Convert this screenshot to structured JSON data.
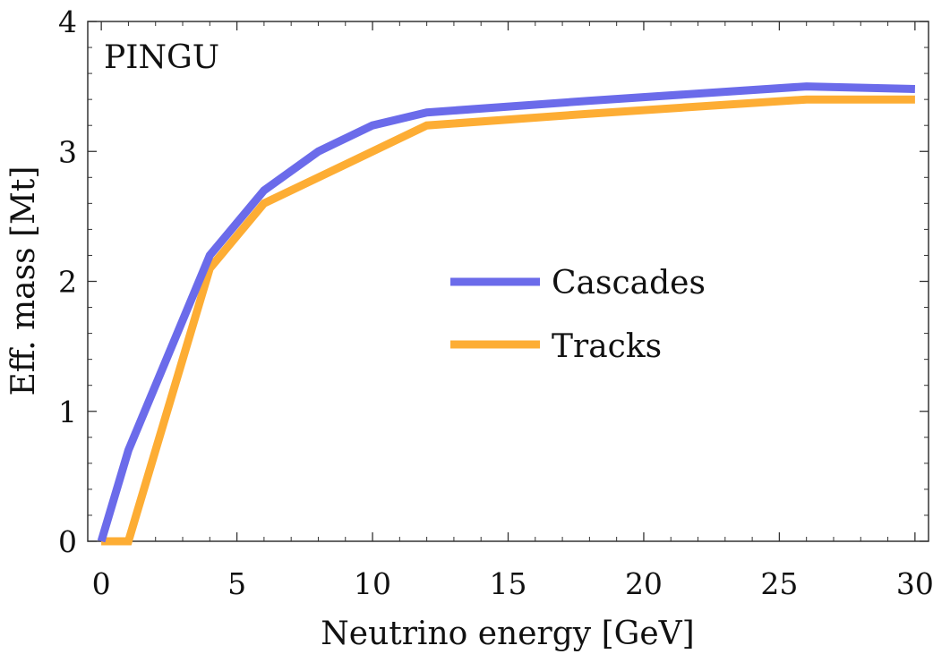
{
  "chart_data": {
    "type": "line",
    "title": "",
    "annotation": "PINGU",
    "xlabel": "Neutrino energy [GeV]",
    "ylabel": "Eff. mass [Mt]",
    "xlim": [
      -0.5,
      30.5
    ],
    "ylim": [
      0,
      4
    ],
    "xticks": [
      0,
      5,
      10,
      15,
      20,
      25,
      30
    ],
    "xtick_labels": [
      "0",
      "5",
      "10",
      "15",
      "20",
      "25",
      "30"
    ],
    "yticks": [
      0,
      1,
      2,
      3,
      4
    ],
    "ytick_labels": [
      "0",
      "1",
      "2",
      "3",
      "4"
    ],
    "x_minor_step": 1,
    "y_minor_step": 0.2,
    "grid": false,
    "legend_position": "center-right",
    "series": [
      {
        "name": "Cascades",
        "color": "#6B6BEA",
        "x": [
          0,
          1,
          4,
          6,
          8,
          10,
          12,
          18,
          26,
          30
        ],
        "y": [
          0,
          0.7,
          2.2,
          2.7,
          3.0,
          3.2,
          3.3,
          3.39,
          3.5,
          3.48
        ]
      },
      {
        "name": "Tracks",
        "color": "#FDAD34",
        "x": [
          0,
          1,
          4,
          6,
          8,
          10,
          12,
          18,
          26,
          30
        ],
        "y": [
          0,
          0,
          2.1,
          2.6,
          2.8,
          3.0,
          3.2,
          3.29,
          3.4,
          3.4
        ]
      }
    ]
  }
}
